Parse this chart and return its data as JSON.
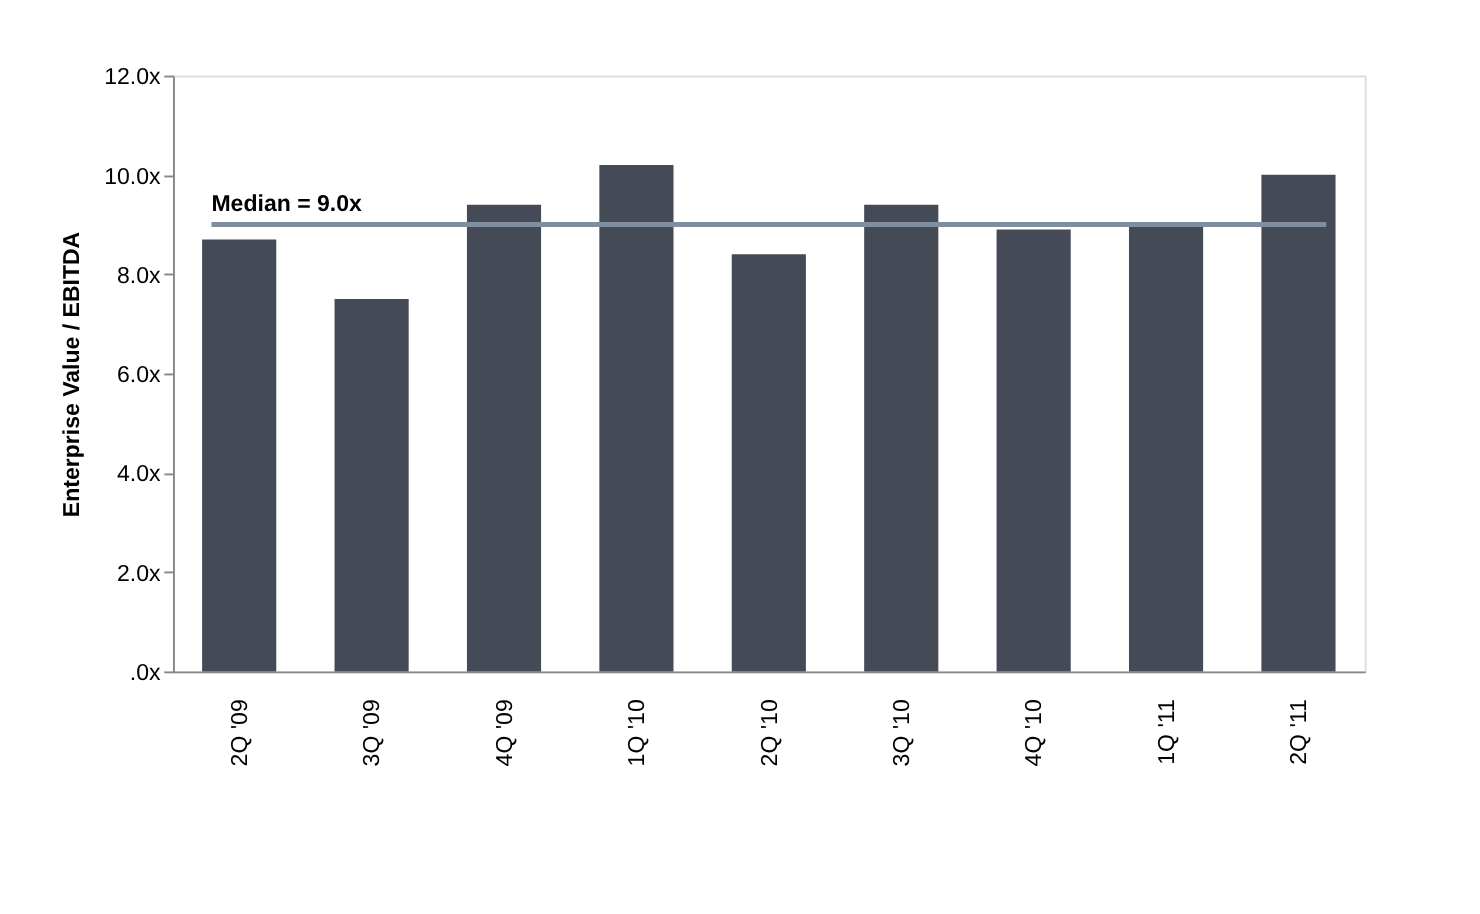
{
  "chart_data": {
    "type": "bar",
    "ylabel": "Enterprise Value / EBITDA",
    "categories": [
      "2Q '09",
      "3Q '09",
      "4Q '09",
      "1Q '10",
      "2Q '10",
      "3Q '10",
      "4Q '10",
      "1Q '11",
      "2Q '11"
    ],
    "values": [
      8.7,
      7.5,
      9.4,
      10.2,
      8.4,
      9.4,
      8.9,
      9.0,
      10.0
    ],
    "color": "#454b56",
    "ylim": [
      0,
      12
    ],
    "yticks": [
      {
        "value": 0,
        "label": ".0x"
      },
      {
        "value": 2,
        "label": "2.0x"
      },
      {
        "value": 4,
        "label": "4.0x"
      },
      {
        "value": 6,
        "label": "6.0x"
      },
      {
        "value": 8,
        "label": "8.0x"
      },
      {
        "value": 10,
        "label": "10.0x"
      },
      {
        "value": 12,
        "label": "12.0x"
      }
    ],
    "ref_lines": [
      {
        "axis": "y",
        "value": 9.0,
        "label": "Median = 9.0x",
        "color": "#7f8fa0"
      }
    ],
    "grid": false
  }
}
